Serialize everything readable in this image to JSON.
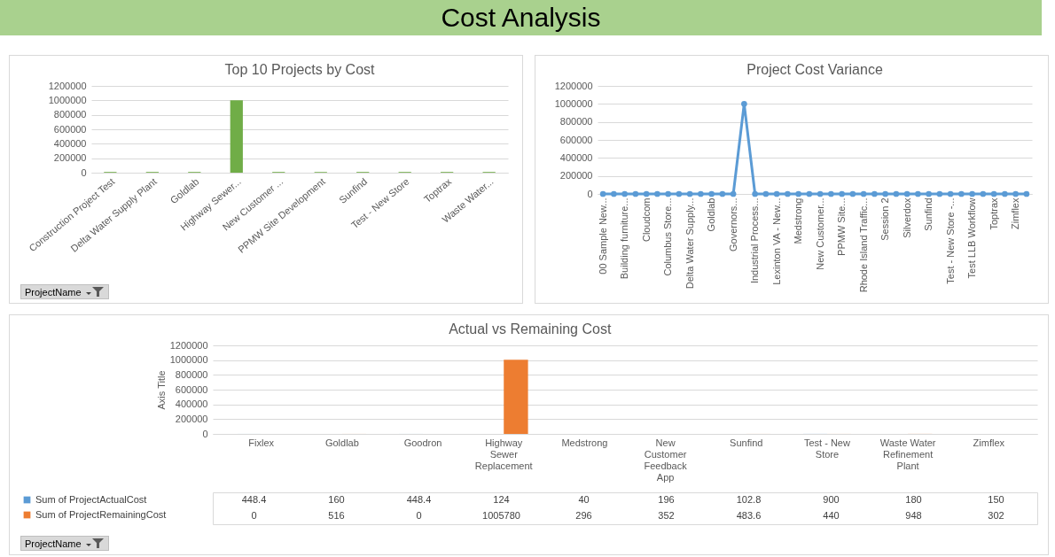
{
  "chart_data": [
    {
      "type": "other",
      "title": "Cost Analysis"
    },
    {
      "type": "bar",
      "title": "Top 10 Projects by Cost",
      "categories": [
        "Construction Project Test",
        "Delta Water Supply Plant",
        "Goldlab",
        "Highway Sewer...",
        "New Customer ...",
        "PPMW Site Development",
        "Sunfind",
        "Test - New Store",
        "Toptrax",
        "Waste Water..."
      ],
      "values": [
        10000,
        10000,
        10000,
        1000000,
        10000,
        10000,
        10000,
        10000,
        10000,
        10000
      ],
      "color": "#70ad47",
      "ylim": [
        0,
        1200000
      ],
      "yticks": [
        0,
        200000,
        400000,
        600000,
        800000,
        1000000,
        1200000
      ],
      "grid": "y",
      "annotations": [
        "ProjectName"
      ]
    },
    {
      "type": "line",
      "title": "Project Cost Variance",
      "categories": [
        "00 Sample New...",
        null,
        "Building furniture...",
        null,
        "Cloudcom",
        null,
        "Columbus Store...",
        null,
        "Delta Water Supply...",
        null,
        "Goldlab",
        null,
        "Governors...",
        null,
        "Industrial Process...",
        null,
        "Lexinton VA - New...",
        null,
        "Medstrong",
        null,
        "New Customer...",
        null,
        "PPMW Site...",
        null,
        "Rhode Island Traffic...",
        null,
        "Session 2",
        null,
        "Silverdox",
        null,
        "Sunfind",
        null,
        "Test - New Store -...",
        null,
        "Test LLB Workflow",
        null,
        "Toptrax",
        null,
        "Zimflex",
        null
      ],
      "values": [
        0,
        0,
        0,
        0,
        0,
        0,
        0,
        0,
        0,
        0,
        0,
        0,
        0,
        1000000,
        0,
        0,
        0,
        0,
        0,
        0,
        0,
        0,
        0,
        0,
        0,
        0,
        0,
        0,
        0,
        0,
        0,
        0,
        0,
        0,
        0,
        0,
        0,
        0,
        0,
        0
      ],
      "color": "#5b9bd5",
      "marker": "circle",
      "ylim": [
        0,
        1200000
      ],
      "yticks": [
        0,
        200000,
        400000,
        600000,
        800000,
        1000000,
        1200000
      ],
      "grid": "y"
    },
    {
      "type": "bar",
      "title": "Actual vs Remaining Cost",
      "ylabel": "Axis Title",
      "categories": [
        "Fixlex",
        "Goldlab",
        "Goodron",
        "Highway Sewer Replacement",
        "Medstrong",
        "New Customer Feedback App",
        "Sunfind",
        "Test - New Store",
        "Waste Water Refinement Plant",
        "Zimflex"
      ],
      "series": [
        {
          "name": "Sum of ProjectActualCost",
          "color": "#5b9bd5",
          "values": [
            448.4,
            160,
            448.4,
            124,
            40,
            196,
            102.8,
            900,
            180,
            150
          ]
        },
        {
          "name": "Sum of ProjectRemainingCost",
          "color": "#ed7d31",
          "values": [
            0,
            516,
            0,
            1005780,
            296,
            352,
            483.6,
            440,
            948,
            302
          ]
        }
      ],
      "ylim": [
        0,
        1200000
      ],
      "yticks": [
        0,
        200000,
        400000,
        600000,
        800000,
        1000000,
        1200000
      ],
      "grid": "y",
      "legend": "bottom left",
      "data_labels": true,
      "annotations": [
        "ProjectName"
      ]
    }
  ]
}
